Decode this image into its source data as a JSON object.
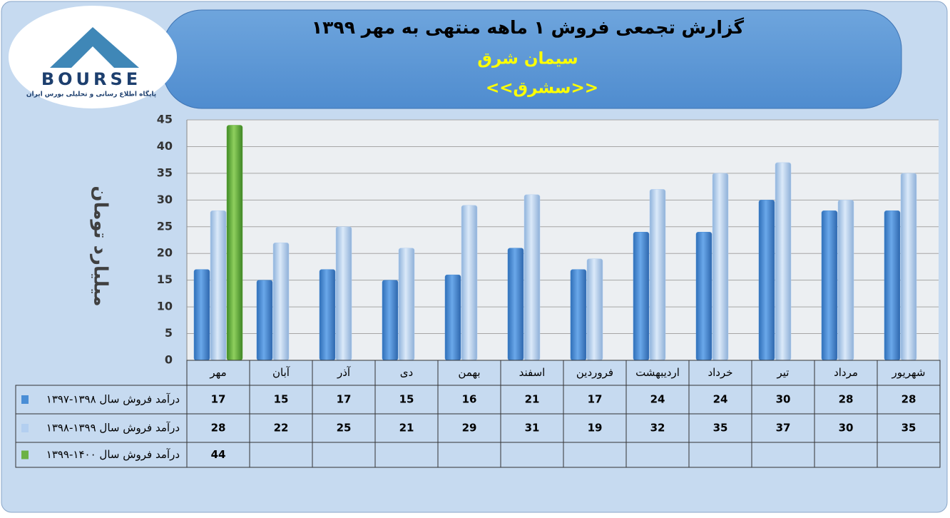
{
  "logo": {
    "name": "BOURSE",
    "tagline": "پایگاه اطلاع رسانی و تحلیلی بورس ایران"
  },
  "chart_data": {
    "type": "bar",
    "title": "گزارش تجمعی فروش ۱ ماهه منتهی به مهر ۱۳۹۹",
    "subtitle": "سیمان شرق",
    "symbol": "<<سشرق>>",
    "y_label": "میلیارد تومان",
    "categories": [
      "مهر",
      "آبان",
      "آذر",
      "دی",
      "بهمن",
      "اسفند",
      "فروردین",
      "اردیبهشت",
      "خرداد",
      "تیر",
      "مرداد",
      "شهریور"
    ],
    "series": [
      {
        "name": "درآمد فروش سال ۱۳۹۸-۱۳۹۷",
        "color": "#4a8ed6",
        "values": [
          17,
          15,
          17,
          15,
          16,
          21,
          17,
          24,
          24,
          30,
          28,
          28
        ]
      },
      {
        "name": "درآمد فروش سال ۱۳۹۹-۱۳۹۸",
        "color": "#b3cff0",
        "values": [
          28,
          22,
          25,
          21,
          29,
          31,
          19,
          32,
          35,
          37,
          30,
          35
        ]
      },
      {
        "name": "درآمد فروش سال ۱۴۰۰-۱۳۹۹",
        "color": "#6cb244",
        "values": [
          44,
          null,
          null,
          null,
          null,
          null,
          null,
          null,
          null,
          null,
          null,
          null
        ]
      }
    ],
    "ylim": [
      0,
      45
    ],
    "yticks": [
      0,
      5,
      10,
      15,
      20,
      25,
      30,
      35,
      40,
      45
    ],
    "grid": true,
    "data_table": true
  }
}
